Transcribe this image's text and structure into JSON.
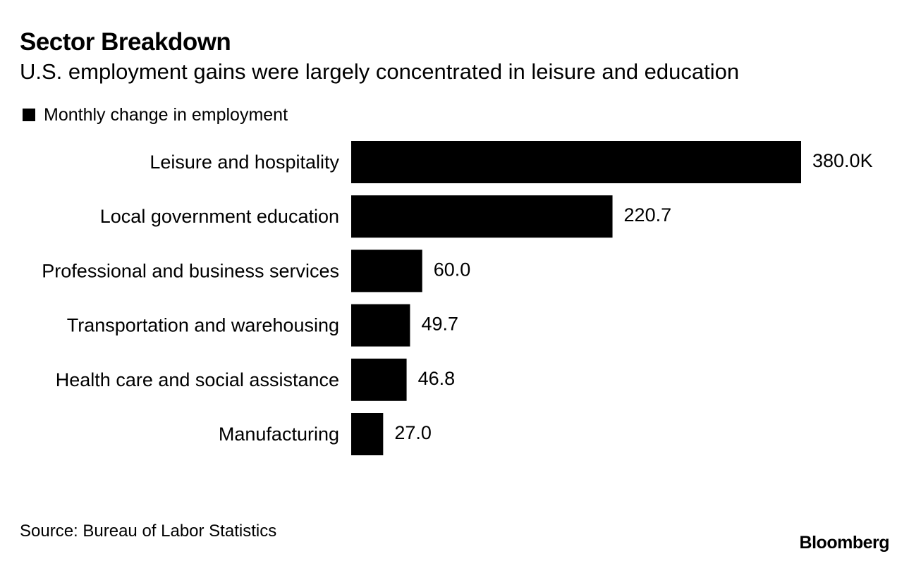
{
  "header": {
    "title": "Sector Breakdown",
    "subtitle": "U.S. employment gains were largely concentrated in leisure and education"
  },
  "legend": {
    "label": "Monthly change in employment"
  },
  "colors": {
    "bar": "#000000",
    "text": "#000000",
    "background": "#ffffff"
  },
  "chart_data": {
    "type": "bar",
    "orientation": "horizontal",
    "title": "Sector Breakdown",
    "subtitle": "U.S. employment gains were largely concentrated in leisure and education",
    "categories": [
      "Leisure and hospitality",
      "Local government education",
      "Professional and business services",
      "Transportation and warehousing",
      "Health care and social assistance",
      "Manufacturing"
    ],
    "series": [
      {
        "name": "Monthly change in employment",
        "values": [
          380.0,
          220.7,
          60.0,
          49.7,
          46.8,
          27.0
        ]
      }
    ],
    "value_labels": [
      "380.0K",
      "220.7",
      "60.0",
      "49.7",
      "46.8",
      "27.0"
    ],
    "xlim": [
      0,
      380
    ],
    "xlabel": "",
    "ylabel": "",
    "grid": false,
    "legend_position": "top-left"
  },
  "footer": {
    "source": "Source: Bureau of Labor Statistics",
    "brand": "Bloomberg"
  }
}
